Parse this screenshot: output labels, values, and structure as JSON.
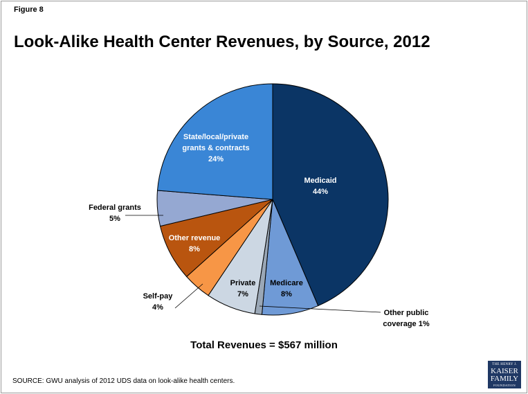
{
  "figure_label": "Figure 8",
  "chart_data": {
    "type": "pie",
    "title": "Look-Alike Health Center Revenues, by Source, 2012",
    "total_label": "Total Revenues = $567 million",
    "slices": [
      {
        "label_lines": [
          "Medicaid"
        ],
        "value": 44,
        "value_label": "44%",
        "color": "#0b3565"
      },
      {
        "label_lines": [
          "Medicare"
        ],
        "value": 8,
        "value_label": "8%",
        "color": "#6f9ad6"
      },
      {
        "label_lines": [
          "Other public",
          "coverage 1%"
        ],
        "value": 1,
        "value_label": "",
        "color": "#9aa7b6"
      },
      {
        "label_lines": [
          "Private"
        ],
        "value": 7,
        "value_label": "7%",
        "color": "#ccd7e3"
      },
      {
        "label_lines": [
          "Self-pay"
        ],
        "value": 4,
        "value_label": "4%",
        "color": "#f79646"
      },
      {
        "label_lines": [
          "Other revenue"
        ],
        "value": 8,
        "value_label": "8%",
        "color": "#b9550f"
      },
      {
        "label_lines": [
          "Federal grants"
        ],
        "value": 5,
        "value_label": "5%",
        "color": "#95a8d2"
      },
      {
        "label_lines": [
          "State/local/private",
          "grants & contracts"
        ],
        "value": 24,
        "value_label": "24%",
        "color": "#3a86d6"
      }
    ]
  },
  "source": "SOURCE: GWU analysis of 2012 UDS data on look-alike health centers.",
  "logo": {
    "line1": "THE HENRY J.",
    "line2": "KAISER",
    "line3": "FAMILY",
    "line4": "FOUNDATION"
  }
}
